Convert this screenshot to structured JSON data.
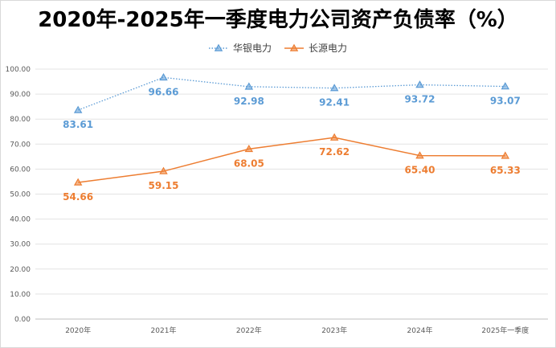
{
  "chart_data": {
    "type": "line",
    "title": "2020年-2025年一季度电力公司资产负债率（%）",
    "categories": [
      "2020年",
      "2021年",
      "2022年",
      "2023年",
      "2024年",
      "2025年一季度"
    ],
    "ylim": [
      0,
      100
    ],
    "yticks": [
      "0.00",
      "10.00",
      "20.00",
      "30.00",
      "40.00",
      "50.00",
      "60.00",
      "70.00",
      "80.00",
      "90.00",
      "100.00"
    ],
    "grid": true,
    "legend_position": "top",
    "series": [
      {
        "name": "华银电力",
        "values": [
          83.61,
          96.66,
          92.98,
          92.41,
          93.72,
          93.07
        ],
        "labels": [
          "83.61",
          "96.66",
          "92.98",
          "92.41",
          "93.72",
          "93.07"
        ],
        "color": "#5b9bd5",
        "line_style": "dotted",
        "marker": "triangle"
      },
      {
        "name": "长源电力",
        "values": [
          54.66,
          59.15,
          68.05,
          72.62,
          65.4,
          65.33
        ],
        "labels": [
          "54.66",
          "59.15",
          "68.05",
          "72.62",
          "65.40",
          "65.33"
        ],
        "color": "#ed7d31",
        "line_style": "solid",
        "marker": "triangle"
      }
    ]
  }
}
